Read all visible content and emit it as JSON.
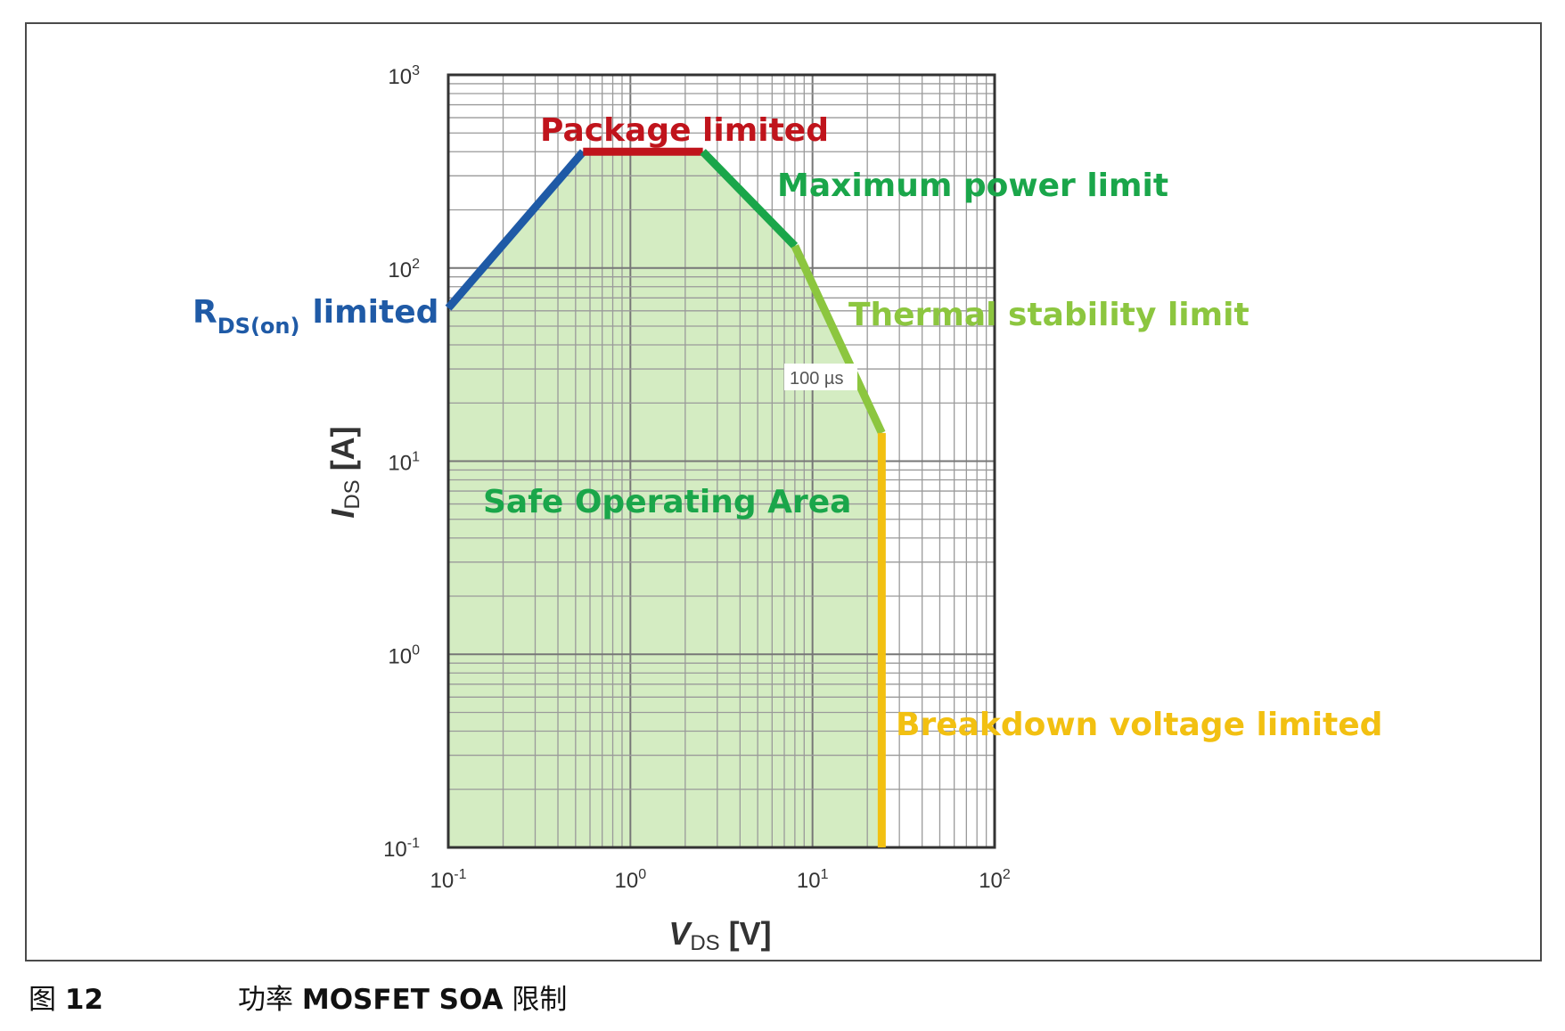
{
  "caption": {
    "figure_prefix": "图",
    "figure_number": "12",
    "title_pre": "功率",
    "title_bold": "MOSFET SOA",
    "title_post": "限制"
  },
  "chart_data": {
    "type": "line",
    "scale": "log-log",
    "grid": true,
    "xlim": [
      0.1,
      100
    ],
    "ylim": [
      0.1,
      1000
    ],
    "x_ticks": [
      {
        "base": "10",
        "exp": "-1",
        "value": 0.1
      },
      {
        "base": "10",
        "exp": "0",
        "value": 1
      },
      {
        "base": "10",
        "exp": "1",
        "value": 10
      },
      {
        "base": "10",
        "exp": "2",
        "value": 100
      }
    ],
    "y_ticks": [
      {
        "base": "10",
        "exp": "-1",
        "value": 0.1
      },
      {
        "base": "10",
        "exp": "0",
        "value": 1
      },
      {
        "base": "10",
        "exp": "1",
        "value": 10
      },
      {
        "base": "10",
        "exp": "2",
        "value": 100
      },
      {
        "base": "10",
        "exp": "3",
        "value": 1000
      }
    ],
    "xlabel": {
      "main": "V",
      "sub": "DS",
      "unit": " [V]"
    },
    "ylabel": {
      "main": "I",
      "sub": "DS",
      "unit": " [A]"
    },
    "fill_color": "#d4ecc2",
    "series": [
      {
        "name": "RDS(on) limited",
        "color": "#1f5aa6",
        "x": [
          0.1,
          0.55
        ],
        "y": [
          62,
          400
        ]
      },
      {
        "name": "Package limited",
        "color": "#c0141c",
        "x": [
          0.55,
          2.5
        ],
        "y": [
          400,
          400
        ]
      },
      {
        "name": "Maximum power limit",
        "color": "#1aa64a",
        "x": [
          2.5,
          8
        ],
        "y": [
          400,
          130
        ]
      },
      {
        "name": "Thermal stability limit",
        "color": "#8cc63f",
        "x": [
          8,
          24
        ],
        "y": [
          130,
          14
        ]
      },
      {
        "name": "Breakdown voltage limited",
        "color": "#f2c011",
        "x": [
          24,
          24
        ],
        "y": [
          14,
          0.1
        ]
      }
    ],
    "annotations": [
      {
        "id": "package",
        "text": "Package limited",
        "color": "#c0141c"
      },
      {
        "id": "max-power",
        "text": "Maximum power limit",
        "color": "#1aa64a"
      },
      {
        "id": "rds-main",
        "text": "R",
        "color": "#1f5aa6"
      },
      {
        "id": "rds-sub",
        "text": "DS(on)",
        "color": "#1f5aa6"
      },
      {
        "id": "rds-tail",
        "text": "limited",
        "color": "#1f5aa6"
      },
      {
        "id": "thermal",
        "text": "Thermal stability limit",
        "color": "#8cc63f"
      },
      {
        "id": "pulse",
        "text": "100 µs",
        "color": "#555555"
      },
      {
        "id": "soa",
        "text": "Safe Operating Area",
        "color": "#1aa64a"
      },
      {
        "id": "breakdown",
        "text": "Breakdown voltage limited",
        "color": "#f2c011"
      }
    ]
  }
}
